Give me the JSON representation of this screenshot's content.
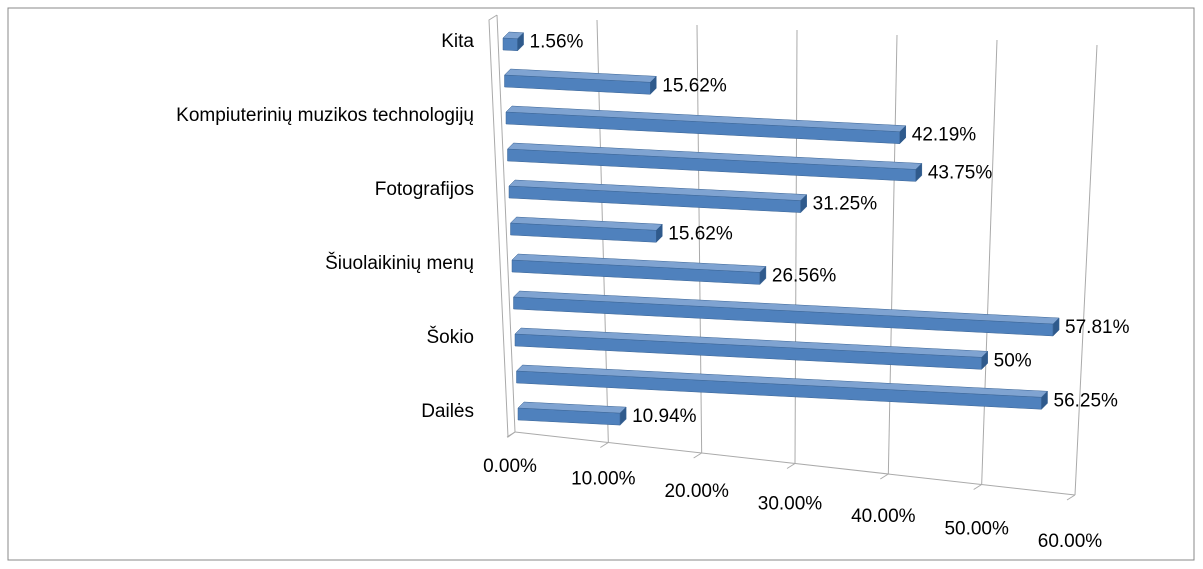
{
  "chart_data": {
    "type": "bar3d_horizontal",
    "categories": [
      "Kita",
      null,
      "Kompiuterinių muzikos technologijų",
      null,
      "Fotografijos",
      null,
      "Šiuolaikinių menų",
      null,
      "Šokio",
      null,
      "Dailės"
    ],
    "values": [
      1.56,
      15.62,
      42.19,
      43.75,
      31.25,
      15.62,
      26.56,
      57.81,
      50,
      56.25,
      10.94
    ],
    "value_labels": [
      "1.56%",
      "15.62%",
      "42.19%",
      "43.75%",
      "31.25%",
      "15.62%",
      "26.56%",
      "57.81%",
      "50%",
      "56.25%",
      "10.94%"
    ],
    "color": "#4f81bd",
    "xlim": [
      0,
      60
    ],
    "xticks": [
      {
        "value": 0,
        "label": "0.00%"
      },
      {
        "value": 10,
        "label": "10.00%"
      },
      {
        "value": 20,
        "label": "20.00%"
      },
      {
        "value": 30,
        "label": "30.00%"
      },
      {
        "value": 40,
        "label": "40.00%"
      },
      {
        "value": 50,
        "label": "50.00%"
      },
      {
        "value": 60,
        "label": "60.00%"
      }
    ],
    "grid": true
  }
}
